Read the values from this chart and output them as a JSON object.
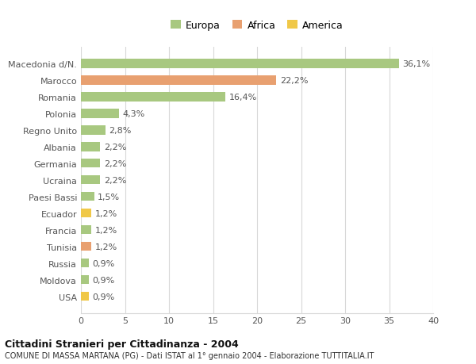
{
  "categories": [
    "Macedonia d/N.",
    "Marocco",
    "Romania",
    "Polonia",
    "Regno Unito",
    "Albania",
    "Germania",
    "Ucraina",
    "Paesi Bassi",
    "Ecuador",
    "Francia",
    "Tunisia",
    "Russia",
    "Moldova",
    "USA"
  ],
  "values": [
    36.1,
    22.2,
    16.4,
    4.3,
    2.8,
    2.2,
    2.2,
    2.2,
    1.5,
    1.2,
    1.2,
    1.2,
    0.9,
    0.9,
    0.9
  ],
  "labels": [
    "36,1%",
    "22,2%",
    "16,4%",
    "4,3%",
    "2,8%",
    "2,2%",
    "2,2%",
    "2,2%",
    "1,5%",
    "1,2%",
    "1,2%",
    "1,2%",
    "0,9%",
    "0,9%",
    "0,9%"
  ],
  "continents": [
    "Europa",
    "Africa",
    "Europa",
    "Europa",
    "Europa",
    "Europa",
    "Europa",
    "Europa",
    "Europa",
    "America",
    "Europa",
    "Africa",
    "Europa",
    "Europa",
    "America"
  ],
  "colors": {
    "Europa": "#a8c880",
    "Africa": "#e8a070",
    "America": "#f0c848"
  },
  "legend_labels": [
    "Europa",
    "Africa",
    "America"
  ],
  "legend_colors": [
    "#a8c880",
    "#e8a070",
    "#f0c848"
  ],
  "title": "Cittadini Stranieri per Cittadinanza - 2004",
  "subtitle": "COMUNE DI MASSA MARTANA (PG) - Dati ISTAT al 1° gennaio 2004 - Elaborazione TUTTITALIA.IT",
  "xlim": [
    0,
    40
  ],
  "xticks": [
    0,
    5,
    10,
    15,
    20,
    25,
    30,
    35,
    40
  ],
  "background_color": "#ffffff",
  "grid_color": "#d8d8d8",
  "bar_height": 0.55,
  "label_fontsize": 8,
  "tick_fontsize": 8,
  "legend_fontsize": 9
}
